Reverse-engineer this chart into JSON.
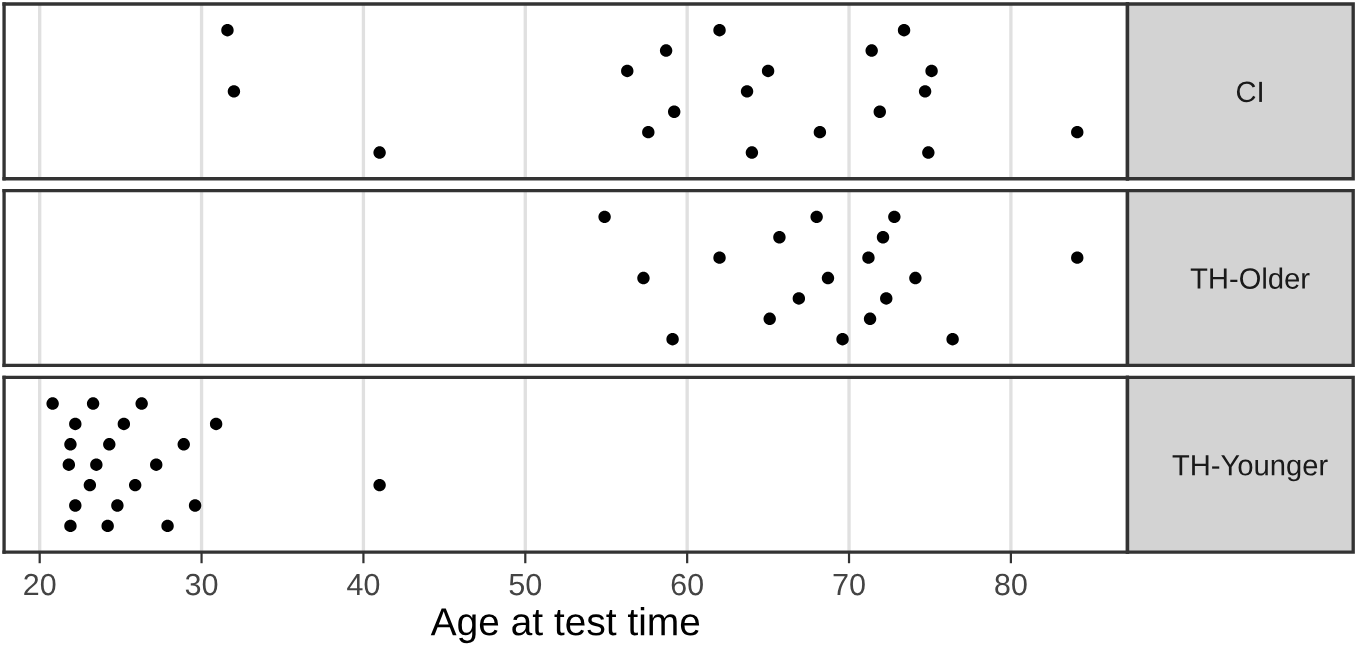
{
  "chart_data": [
    {
      "type": "scatter",
      "orientation": "horizontal",
      "categories": [
        "CI"
      ],
      "grid": "x",
      "tick_labels": "y",
      "xlim": [
        17.8,
        87.2
      ],
      "xticks": [
        20,
        30,
        40,
        50,
        60,
        70,
        80
      ],
      "series": [
        {
          "color": "#000000",
          "x": [
            "CI",
            "CI",
            "CI",
            "CI",
            "CI",
            "CI",
            "CI",
            "CI",
            "CI",
            "CI",
            "CI",
            "CI",
            "CI",
            "CI",
            "CI",
            "CI",
            "CI",
            "CI",
            "CI"
          ],
          "values": [
            32.0,
            31.6,
            41.0,
            56.3,
            57.6,
            58.7,
            59.2,
            62.0,
            64.0,
            65.0,
            63.7,
            68.2,
            74.9,
            75.1,
            73.4,
            71.4,
            71.9,
            74.7,
            84.1
          ]
        }
      ]
    },
    {
      "type": "scatter",
      "orientation": "horizontal",
      "categories": [
        "TH-Older"
      ],
      "grid": "x",
      "tick_labels": "y",
      "xlim": [
        17.8,
        87.2
      ],
      "xticks": [
        20,
        30,
        40,
        50,
        60,
        70,
        80
      ],
      "series": [
        {
          "color": "#000000",
          "x": [
            "TH-Older",
            "TH-Older",
            "TH-Older",
            "TH-Older",
            "TH-Older",
            "TH-Older",
            "TH-Older",
            "TH-Older",
            "TH-Older",
            "TH-Older",
            "TH-Older",
            "TH-Older",
            "TH-Older",
            "TH-Older",
            "TH-Older",
            "TH-Older",
            "TH-Older",
            "TH-Older"
          ],
          "values": [
            59.1,
            54.9,
            57.3,
            65.7,
            66.9,
            69.6,
            72.8,
            74.1,
            71.3,
            68.7,
            62.0,
            76.4,
            65.1,
            68.0,
            71.2,
            72.1,
            72.3,
            84.1
          ]
        }
      ]
    },
    {
      "type": "scatter",
      "orientation": "horizontal",
      "categories": [
        "TH-Younger"
      ],
      "xlabel": "Age at test time",
      "grid": "x",
      "xlim": [
        17.8,
        87.2
      ],
      "xticks": [
        20,
        30,
        40,
        50,
        60,
        70,
        80
      ],
      "series": [
        {
          "color": "#000000",
          "x": [
            "TH-Younger",
            "TH-Younger",
            "TH-Younger",
            "TH-Younger",
            "TH-Younger",
            "TH-Younger",
            "TH-Younger",
            "TH-Younger",
            "TH-Younger",
            "TH-Younger",
            "TH-Younger",
            "TH-Younger",
            "TH-Younger",
            "TH-Younger",
            "TH-Younger",
            "TH-Younger",
            "TH-Younger",
            "TH-Younger",
            "TH-Younger",
            "TH-Younger",
            "TH-Younger"
          ],
          "values": [
            21.8,
            23.5,
            24.3,
            28.9,
            26.3,
            22.2,
            23.3,
            24.8,
            29.6,
            21.9,
            27.9,
            20.8,
            22.2,
            21.9,
            24.2,
            25.2,
            25.9,
            41.0,
            23.1,
            27.2,
            30.9
          ]
        }
      ]
    }
  ]
}
